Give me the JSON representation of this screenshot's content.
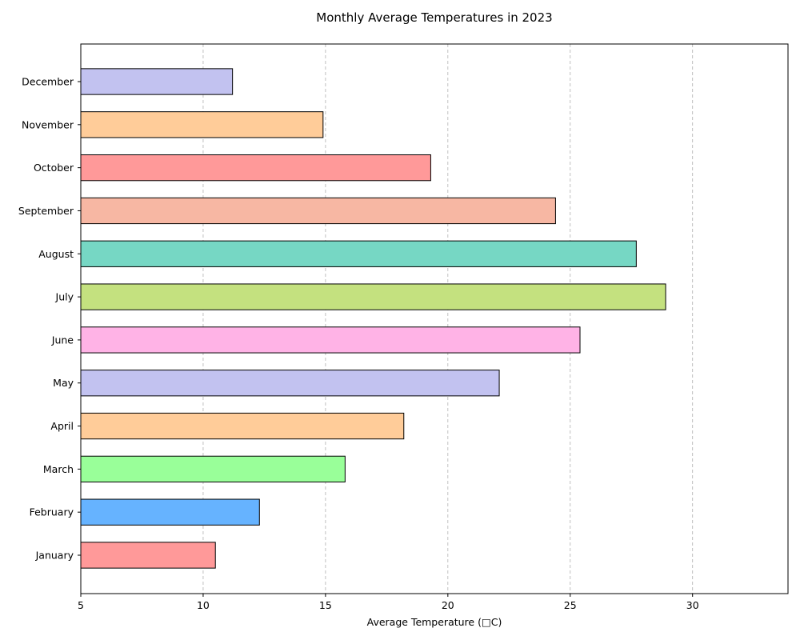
{
  "chart_data": {
    "type": "bar",
    "orientation": "horizontal",
    "title": "Monthly Average Temperatures in 2023",
    "xlabel": "Average Temperature (□C)",
    "ylabel": "",
    "categories": [
      "January",
      "February",
      "March",
      "April",
      "May",
      "June",
      "July",
      "August",
      "September",
      "October",
      "November",
      "December"
    ],
    "values": [
      10.5,
      12.3,
      15.8,
      18.2,
      22.1,
      25.4,
      28.9,
      27.7,
      24.4,
      19.3,
      14.9,
      11.2
    ],
    "colors": [
      "#ff9999",
      "#66b3ff",
      "#99ff99",
      "#ffcc99",
      "#c2c2f0",
      "#ffb3e6",
      "#c4e17f",
      "#76d7c4",
      "#f7b7a3",
      "#ff9999",
      "#ffcc99",
      "#c2c2f0"
    ],
    "xlim": [
      5,
      33.9
    ],
    "xticks": [
      5,
      10,
      15,
      20,
      25,
      30
    ],
    "grid": "x-dashed",
    "legend": "none"
  }
}
